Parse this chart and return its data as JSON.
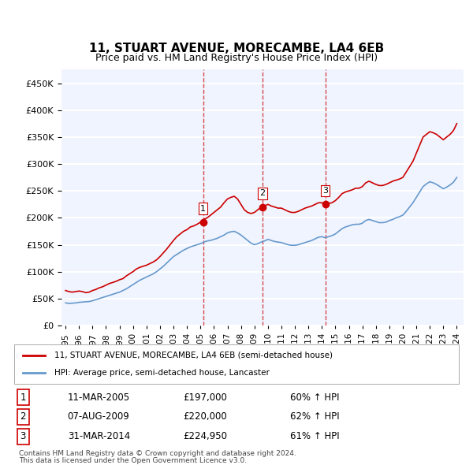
{
  "title": "11, STUART AVENUE, MORECAMBE, LA4 6EB",
  "subtitle": "Price paid vs. HM Land Registry's House Price Index (HPI)",
  "red_label": "11, STUART AVENUE, MORECAMBE, LA4 6EB (semi-detached house)",
  "blue_label": "HPI: Average price, semi-detached house, Lancaster",
  "transactions": [
    {
      "num": 1,
      "date": "11-MAR-2005",
      "price": "£197,000",
      "hpi": "60% ↑ HPI",
      "year": 2005.19
    },
    {
      "num": 2,
      "date": "07-AUG-2009",
      "price": "£220,000",
      "hpi": "62% ↑ HPI",
      "year": 2009.6
    },
    {
      "num": 3,
      "date": "31-MAR-2014",
      "price": "£224,950",
      "hpi": "61% ↑ HPI",
      "year": 2014.25
    }
  ],
  "footnote1": "Contains HM Land Registry data © Crown copyright and database right 2024.",
  "footnote2": "This data is licensed under the Open Government Licence v3.0.",
  "ylim": [
    0,
    475000
  ],
  "yticks": [
    0,
    50000,
    100000,
    150000,
    200000,
    250000,
    300000,
    350000,
    400000,
    450000
  ],
  "red_color": "#cc0000",
  "blue_color": "#6699cc",
  "vline_color": "#cc0000",
  "background_color": "#f0f4ff",
  "grid_color": "#ffffff",
  "red_x": [
    1995.0,
    1995.25,
    1995.5,
    1995.75,
    1996.0,
    1996.25,
    1996.5,
    1996.75,
    1997.0,
    1997.25,
    1997.5,
    1997.75,
    1998.0,
    1998.25,
    1998.5,
    1998.75,
    1999.0,
    1999.25,
    1999.5,
    1999.75,
    2000.0,
    2000.25,
    2000.5,
    2000.75,
    2001.0,
    2001.25,
    2001.5,
    2001.75,
    2002.0,
    2002.25,
    2002.5,
    2002.75,
    2003.0,
    2003.25,
    2003.5,
    2003.75,
    2004.0,
    2004.25,
    2004.5,
    2004.75,
    2005.0,
    2005.25,
    2005.5,
    2005.75,
    2006.0,
    2006.25,
    2006.5,
    2006.75,
    2007.0,
    2007.25,
    2007.5,
    2007.75,
    2008.0,
    2008.25,
    2008.5,
    2008.75,
    2009.0,
    2009.25,
    2009.5,
    2009.75,
    2010.0,
    2010.25,
    2010.5,
    2010.75,
    2011.0,
    2011.25,
    2011.5,
    2011.75,
    2012.0,
    2012.25,
    2012.5,
    2012.75,
    2013.0,
    2013.25,
    2013.5,
    2013.75,
    2014.0,
    2014.25,
    2014.5,
    2014.75,
    2015.0,
    2015.25,
    2015.5,
    2015.75,
    2016.0,
    2016.25,
    2016.5,
    2016.75,
    2017.0,
    2017.25,
    2017.5,
    2017.75,
    2018.0,
    2018.25,
    2018.5,
    2018.75,
    2019.0,
    2019.25,
    2019.5,
    2019.75,
    2020.0,
    2020.25,
    2020.5,
    2020.75,
    2021.0,
    2021.25,
    2021.5,
    2021.75,
    2022.0,
    2022.25,
    2022.5,
    2022.75,
    2023.0,
    2023.25,
    2023.5,
    2023.75,
    2024.0
  ],
  "red_y": [
    65000,
    63000,
    62000,
    63000,
    64000,
    63000,
    61000,
    62000,
    65000,
    67000,
    70000,
    72000,
    75000,
    78000,
    80000,
    82000,
    85000,
    87000,
    92000,
    96000,
    100000,
    105000,
    108000,
    110000,
    112000,
    115000,
    118000,
    122000,
    128000,
    135000,
    142000,
    150000,
    158000,
    165000,
    170000,
    175000,
    178000,
    183000,
    185000,
    188000,
    192000,
    197000,
    200000,
    205000,
    210000,
    215000,
    220000,
    228000,
    235000,
    238000,
    240000,
    235000,
    225000,
    215000,
    210000,
    208000,
    210000,
    215000,
    220000,
    222000,
    225000,
    222000,
    220000,
    218000,
    218000,
    215000,
    212000,
    210000,
    210000,
    212000,
    215000,
    218000,
    220000,
    222000,
    225000,
    228000,
    228000,
    225000,
    227000,
    228000,
    232000,
    238000,
    245000,
    248000,
    250000,
    252000,
    255000,
    255000,
    258000,
    265000,
    268000,
    265000,
    262000,
    260000,
    260000,
    262000,
    265000,
    268000,
    270000,
    272000,
    275000,
    285000,
    295000,
    305000,
    320000,
    335000,
    350000,
    355000,
    360000,
    358000,
    355000,
    350000,
    345000,
    350000,
    355000,
    362000,
    375000
  ],
  "blue_x": [
    1995.0,
    1995.25,
    1995.5,
    1995.75,
    1996.0,
    1996.25,
    1996.5,
    1996.75,
    1997.0,
    1997.25,
    1997.5,
    1997.75,
    1998.0,
    1998.25,
    1998.5,
    1998.75,
    1999.0,
    1999.25,
    1999.5,
    1999.75,
    2000.0,
    2000.25,
    2000.5,
    2000.75,
    2001.0,
    2001.25,
    2001.5,
    2001.75,
    2002.0,
    2002.25,
    2002.5,
    2002.75,
    2003.0,
    2003.25,
    2003.5,
    2003.75,
    2004.0,
    2004.25,
    2004.5,
    2004.75,
    2005.0,
    2005.25,
    2005.5,
    2005.75,
    2006.0,
    2006.25,
    2006.5,
    2006.75,
    2007.0,
    2007.25,
    2007.5,
    2007.75,
    2008.0,
    2008.25,
    2008.5,
    2008.75,
    2009.0,
    2009.25,
    2009.5,
    2009.75,
    2010.0,
    2010.25,
    2010.5,
    2010.75,
    2011.0,
    2011.25,
    2011.5,
    2011.75,
    2012.0,
    2012.25,
    2012.5,
    2012.75,
    2013.0,
    2013.25,
    2013.5,
    2013.75,
    2014.0,
    2014.25,
    2014.5,
    2014.75,
    2015.0,
    2015.25,
    2015.5,
    2015.75,
    2016.0,
    2016.25,
    2016.5,
    2016.75,
    2017.0,
    2017.25,
    2017.5,
    2017.75,
    2018.0,
    2018.25,
    2018.5,
    2018.75,
    2019.0,
    2019.25,
    2019.5,
    2019.75,
    2020.0,
    2020.25,
    2020.5,
    2020.75,
    2021.0,
    2021.25,
    2021.5,
    2021.75,
    2022.0,
    2022.25,
    2022.5,
    2022.75,
    2023.0,
    2023.25,
    2023.5,
    2023.75,
    2024.0
  ],
  "blue_y": [
    42000,
    41000,
    41500,
    42000,
    43000,
    43500,
    44000,
    44500,
    46000,
    48000,
    50000,
    52000,
    54000,
    56000,
    58000,
    60000,
    62000,
    65000,
    68000,
    72000,
    76000,
    80000,
    84000,
    87000,
    90000,
    93000,
    96000,
    100000,
    105000,
    110000,
    116000,
    122000,
    128000,
    132000,
    136000,
    140000,
    143000,
    146000,
    148000,
    150000,
    152000,
    155000,
    157000,
    158000,
    160000,
    162000,
    165000,
    168000,
    172000,
    174000,
    175000,
    172000,
    168000,
    163000,
    158000,
    153000,
    150000,
    152000,
    155000,
    157000,
    160000,
    158000,
    156000,
    155000,
    154000,
    152000,
    150000,
    149000,
    149000,
    150000,
    152000,
    154000,
    156000,
    158000,
    161000,
    164000,
    165000,
    163000,
    165000,
    167000,
    170000,
    175000,
    180000,
    183000,
    185000,
    187000,
    188000,
    188000,
    190000,
    195000,
    197000,
    195000,
    193000,
    191000,
    191000,
    192000,
    195000,
    197000,
    200000,
    202000,
    205000,
    212000,
    220000,
    228000,
    238000,
    248000,
    258000,
    263000,
    267000,
    265000,
    262000,
    258000,
    254000,
    257000,
    261000,
    266000,
    275000
  ]
}
